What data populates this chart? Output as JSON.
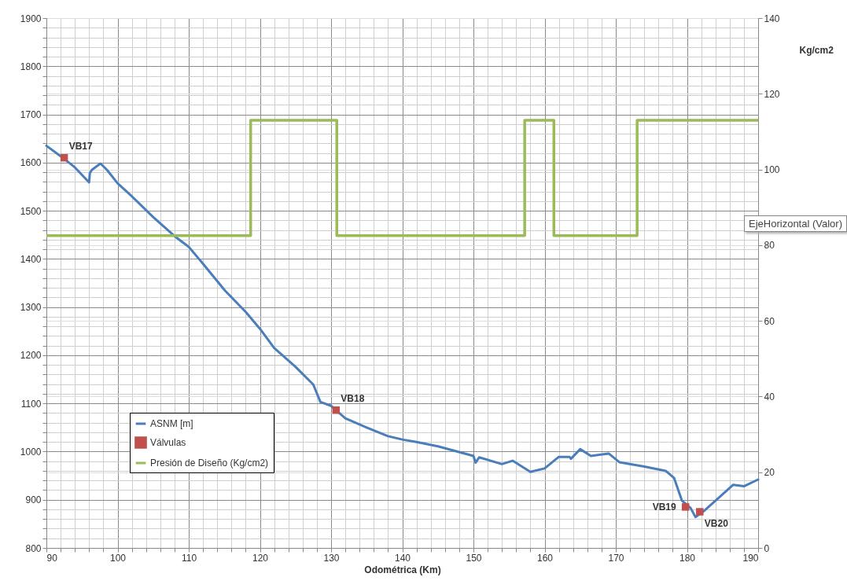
{
  "chart_data": {
    "type": "line",
    "xlabel": "Odométrica (Km)",
    "y2label": "Kg/cm2",
    "xlim": [
      90,
      190
    ],
    "xticks": [
      90,
      {
        "value": 92,
        "label": null
      },
      {
        "value": 94,
        "label": null
      },
      {
        "value": 96,
        "label": null
      },
      {
        "value": 98,
        "label": null
      },
      100,
      {
        "value": 102,
        "label": null
      },
      {
        "value": 104,
        "label": null
      },
      {
        "value": 106,
        "label": null
      },
      {
        "value": 108,
        "label": null
      },
      110,
      {
        "value": 112,
        "label": null
      },
      {
        "value": 114,
        "label": null
      },
      {
        "value": 116,
        "label": null
      },
      {
        "value": 118,
        "label": null
      },
      120,
      {
        "value": 122,
        "label": null
      },
      {
        "value": 124,
        "label": null
      },
      {
        "value": 126,
        "label": null
      },
      {
        "value": 128,
        "label": null
      },
      130,
      {
        "value": 132,
        "label": null
      },
      {
        "value": 134,
        "label": null
      },
      {
        "value": 136,
        "label": null
      },
      {
        "value": 138,
        "label": null
      },
      140,
      {
        "value": 142,
        "label": null
      },
      {
        "value": 144,
        "label": null
      },
      {
        "value": 146,
        "label": null
      },
      {
        "value": 148,
        "label": null
      },
      150,
      {
        "value": 152,
        "label": null
      },
      {
        "value": 154,
        "label": null
      },
      {
        "value": 156,
        "label": null
      },
      {
        "value": 158,
        "label": null
      },
      160,
      {
        "value": 162,
        "label": null
      },
      {
        "value": 164,
        "label": null
      },
      {
        "value": 166,
        "label": null
      },
      {
        "value": 168,
        "label": null
      },
      170,
      {
        "value": 172,
        "label": null
      },
      {
        "value": 174,
        "label": null
      },
      {
        "value": 176,
        "label": null
      },
      {
        "value": 178,
        "label": null
      },
      180,
      {
        "value": 182,
        "label": null
      },
      {
        "value": 184,
        "label": null
      },
      {
        "value": 186,
        "label": null
      },
      {
        "value": 188,
        "label": null
      },
      190
    ],
    "ylim": [
      800,
      1900
    ],
    "yticks": [
      800,
      {
        "value": 820,
        "label": null
      },
      {
        "value": 840,
        "label": null
      },
      {
        "value": 860,
        "label": null
      },
      {
        "value": 880,
        "label": null
      },
      900,
      {
        "value": 920,
        "label": null
      },
      {
        "value": 940,
        "label": null
      },
      {
        "value": 960,
        "label": null
      },
      {
        "value": 980,
        "label": null
      },
      1000,
      {
        "value": 1020,
        "label": null
      },
      {
        "value": 1040,
        "label": null
      },
      {
        "value": 1060,
        "label": null
      },
      {
        "value": 1080,
        "label": null
      },
      1100,
      {
        "value": 1120,
        "label": null
      },
      {
        "value": 1140,
        "label": null
      },
      {
        "value": 1160,
        "label": null
      },
      {
        "value": 1180,
        "label": null
      },
      1200,
      {
        "value": 1220,
        "label": null
      },
      {
        "value": 1240,
        "label": null
      },
      {
        "value": 1260,
        "label": null
      },
      {
        "value": 1280,
        "label": null
      },
      1300,
      {
        "value": 1320,
        "label": null
      },
      {
        "value": 1340,
        "label": null
      },
      {
        "value": 1360,
        "label": null
      },
      {
        "value": 1380,
        "label": null
      },
      1400,
      {
        "value": 1420,
        "label": null
      },
      {
        "value": 1440,
        "label": null
      },
      {
        "value": 1460,
        "label": null
      },
      {
        "value": 1480,
        "label": null
      },
      1500,
      {
        "value": 1520,
        "label": null
      },
      {
        "value": 1540,
        "label": null
      },
      {
        "value": 1560,
        "label": null
      },
      {
        "value": 1580,
        "label": null
      },
      1600,
      {
        "value": 1620,
        "label": null
      },
      {
        "value": 1640,
        "label": null
      },
      {
        "value": 1660,
        "label": null
      },
      {
        "value": 1680,
        "label": null
      },
      1700,
      {
        "value": 1720,
        "label": null
      },
      {
        "value": 1740,
        "label": null
      },
      {
        "value": 1760,
        "label": null
      },
      {
        "value": 1780,
        "label": null
      },
      1800,
      {
        "value": 1820,
        "label": null
      },
      {
        "value": 1840,
        "label": null
      },
      {
        "value": 1860,
        "label": null
      },
      {
        "value": 1880,
        "label": null
      },
      1900
    ],
    "y2lim": [
      0,
      140
    ],
    "y2ticks": [
      0,
      20,
      40,
      60,
      80,
      100,
      120,
      140
    ],
    "grid": true,
    "legend": "bottom left",
    "series": [
      {
        "name": "ASNM [m]",
        "color": "#4a7ebb",
        "x": [
          90,
          92.3,
          94,
          96,
          96.1,
          96.4,
          97.6,
          98.5,
          100,
          102,
          105,
          108.2,
          110,
          112,
          115.1,
          118,
          120,
          122,
          125,
          127.5,
          128.5,
          130,
          130.7,
          132,
          135,
          138,
          140,
          142,
          145,
          150,
          150.3,
          150.8,
          154,
          155.5,
          158,
          160,
          162,
          163.5,
          163.7,
          165,
          166.5,
          169,
          170.5,
          174,
          177,
          178.2,
          179.3,
          180.5,
          181.2,
          182.5,
          185,
          186.5,
          188,
          190
        ],
        "values": [
          1635,
          1610,
          1590,
          1559,
          1578,
          1585,
          1598,
          1585,
          1557,
          1530,
          1487,
          1445,
          1425,
          1390,
          1334,
          1290,
          1255,
          1215,
          1176,
          1139,
          1103,
          1095,
          1086,
          1069,
          1050,
          1032,
          1025,
          1020,
          1011,
          991,
          977,
          988,
          974,
          981,
          958,
          965,
          989,
          989,
          985,
          1005,
          991,
          996,
          978,
          969,
          960,
          945,
          898,
          883,
          864,
          878,
          911,
          931,
          928,
          942
        ]
      },
      {
        "name": "Válvulas",
        "type": "scatter",
        "marker": "square",
        "color": "#c0504d",
        "x": [
          92.5,
          130.7,
          179.8,
          181.8
        ],
        "values": [
          1610,
          1086,
          885,
          875
        ]
      },
      {
        "name": "Presión de Diseño (Kg/cm2)",
        "type": "step",
        "axis": "y2",
        "color": "#9bbb59",
        "x": [
          90,
          118.7,
          130.8,
          157.2,
          161.3,
          173.0,
          190
        ],
        "values": [
          82.5,
          113,
          82.5,
          113,
          82.5,
          113,
          113
        ]
      }
    ],
    "annotations": [
      {
        "text": "VB17",
        "x": 92.5,
        "y": 1610
      },
      {
        "text": "VB18",
        "x": 130.7,
        "y": 1086
      },
      {
        "text": "VB19",
        "x": 179.8,
        "y": 885
      },
      {
        "text": "VB20",
        "x": 181.8,
        "y": 875
      },
      "EjeHorizontal (Valor)"
    ]
  }
}
